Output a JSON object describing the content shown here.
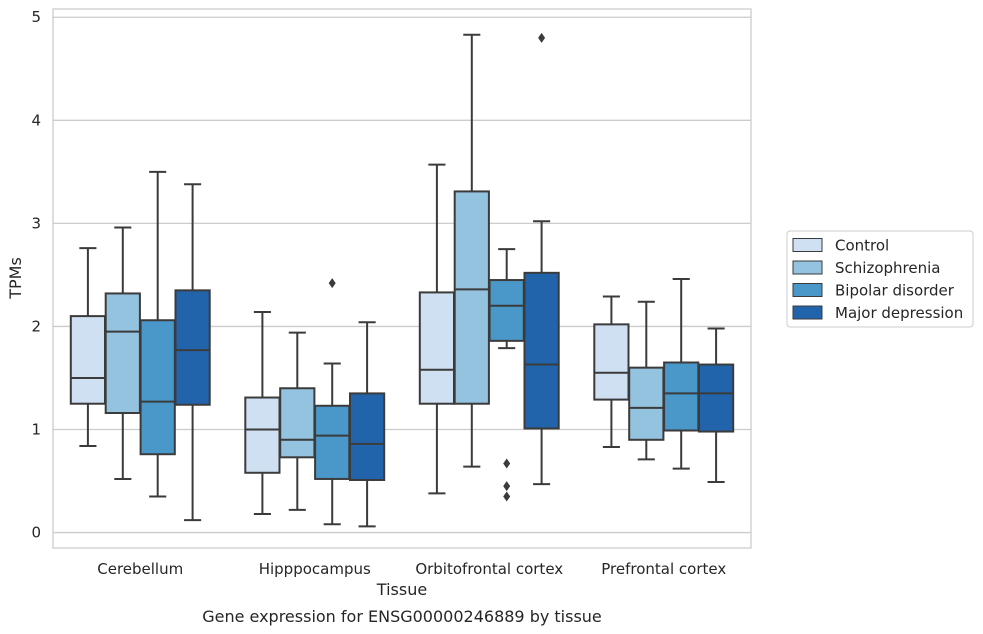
{
  "chart_data": {
    "type": "box",
    "xlabel": "Tissue",
    "ylabel": "TPMs",
    "caption": "Gene expression for ENSG00000246889 by tissue",
    "categories": [
      "Cerebellum",
      "Hipppocampus",
      "Orbitofrontal cortex",
      "Prefrontal cortex"
    ],
    "ylim": [
      -0.15,
      5.08
    ],
    "yticks": [
      "0",
      "1",
      "2",
      "3",
      "4",
      "5"
    ],
    "grid": true,
    "legend": {
      "placement": "right",
      "entries": [
        "Control",
        "Schizophrenia",
        "Bipolar disorder",
        "Major depression"
      ]
    },
    "colors": {
      "Control": "#cfe0f2",
      "Schizophrenia": "#93c3df",
      "Bipolar disorder": "#4a98c9",
      "Major depression": "#2164ac",
      "edge": "#3b3b3b",
      "grid": "#cccccc",
      "frame": "#cccccc"
    },
    "series": [
      {
        "name": "Control",
        "boxes": [
          {
            "whislo": 0.84,
            "q1": 1.25,
            "med": 1.5,
            "q3": 2.1,
            "whishi": 2.76,
            "fliers": []
          },
          {
            "whislo": 0.18,
            "q1": 0.58,
            "med": 1.0,
            "q3": 1.31,
            "whishi": 2.14,
            "fliers": []
          },
          {
            "whislo": 0.38,
            "q1": 1.25,
            "med": 1.58,
            "q3": 2.33,
            "whishi": 3.57,
            "fliers": []
          },
          {
            "whislo": 0.83,
            "q1": 1.29,
            "med": 1.55,
            "q3": 2.02,
            "whishi": 2.29,
            "fliers": []
          }
        ]
      },
      {
        "name": "Schizophrenia",
        "boxes": [
          {
            "whislo": 0.52,
            "q1": 1.16,
            "med": 1.95,
            "q3": 2.32,
            "whishi": 2.96,
            "fliers": []
          },
          {
            "whislo": 0.22,
            "q1": 0.73,
            "med": 0.9,
            "q3": 1.4,
            "whishi": 1.94,
            "fliers": []
          },
          {
            "whislo": 0.64,
            "q1": 1.25,
            "med": 2.36,
            "q3": 3.31,
            "whishi": 4.83,
            "fliers": []
          },
          {
            "whislo": 0.71,
            "q1": 0.9,
            "med": 1.21,
            "q3": 1.6,
            "whishi": 2.24,
            "fliers": []
          }
        ]
      },
      {
        "name": "Bipolar disorder",
        "boxes": [
          {
            "whislo": 0.35,
            "q1": 0.76,
            "med": 1.27,
            "q3": 2.06,
            "whishi": 3.5,
            "fliers": []
          },
          {
            "whislo": 0.08,
            "q1": 0.52,
            "med": 0.94,
            "q3": 1.23,
            "whishi": 1.64,
            "fliers": [
              2.42
            ]
          },
          {
            "whislo": 1.79,
            "q1": 1.86,
            "med": 2.2,
            "q3": 2.45,
            "whishi": 2.75,
            "fliers": [
              0.67,
              0.45,
              0.35
            ]
          },
          {
            "whislo": 0.62,
            "q1": 0.99,
            "med": 1.35,
            "q3": 1.65,
            "whishi": 2.46,
            "fliers": []
          }
        ]
      },
      {
        "name": "Major depression",
        "boxes": [
          {
            "whislo": 0.12,
            "q1": 1.24,
            "med": 1.77,
            "q3": 2.35,
            "whishi": 3.38,
            "fliers": []
          },
          {
            "whislo": 0.06,
            "q1": 0.51,
            "med": 0.86,
            "q3": 1.35,
            "whishi": 2.04,
            "fliers": []
          },
          {
            "whislo": 0.47,
            "q1": 1.01,
            "med": 1.63,
            "q3": 2.52,
            "whishi": 3.02,
            "fliers": [
              4.8
            ]
          },
          {
            "whislo": 0.49,
            "q1": 0.98,
            "med": 1.35,
            "q3": 1.63,
            "whishi": 1.98,
            "fliers": []
          }
        ]
      }
    ]
  }
}
